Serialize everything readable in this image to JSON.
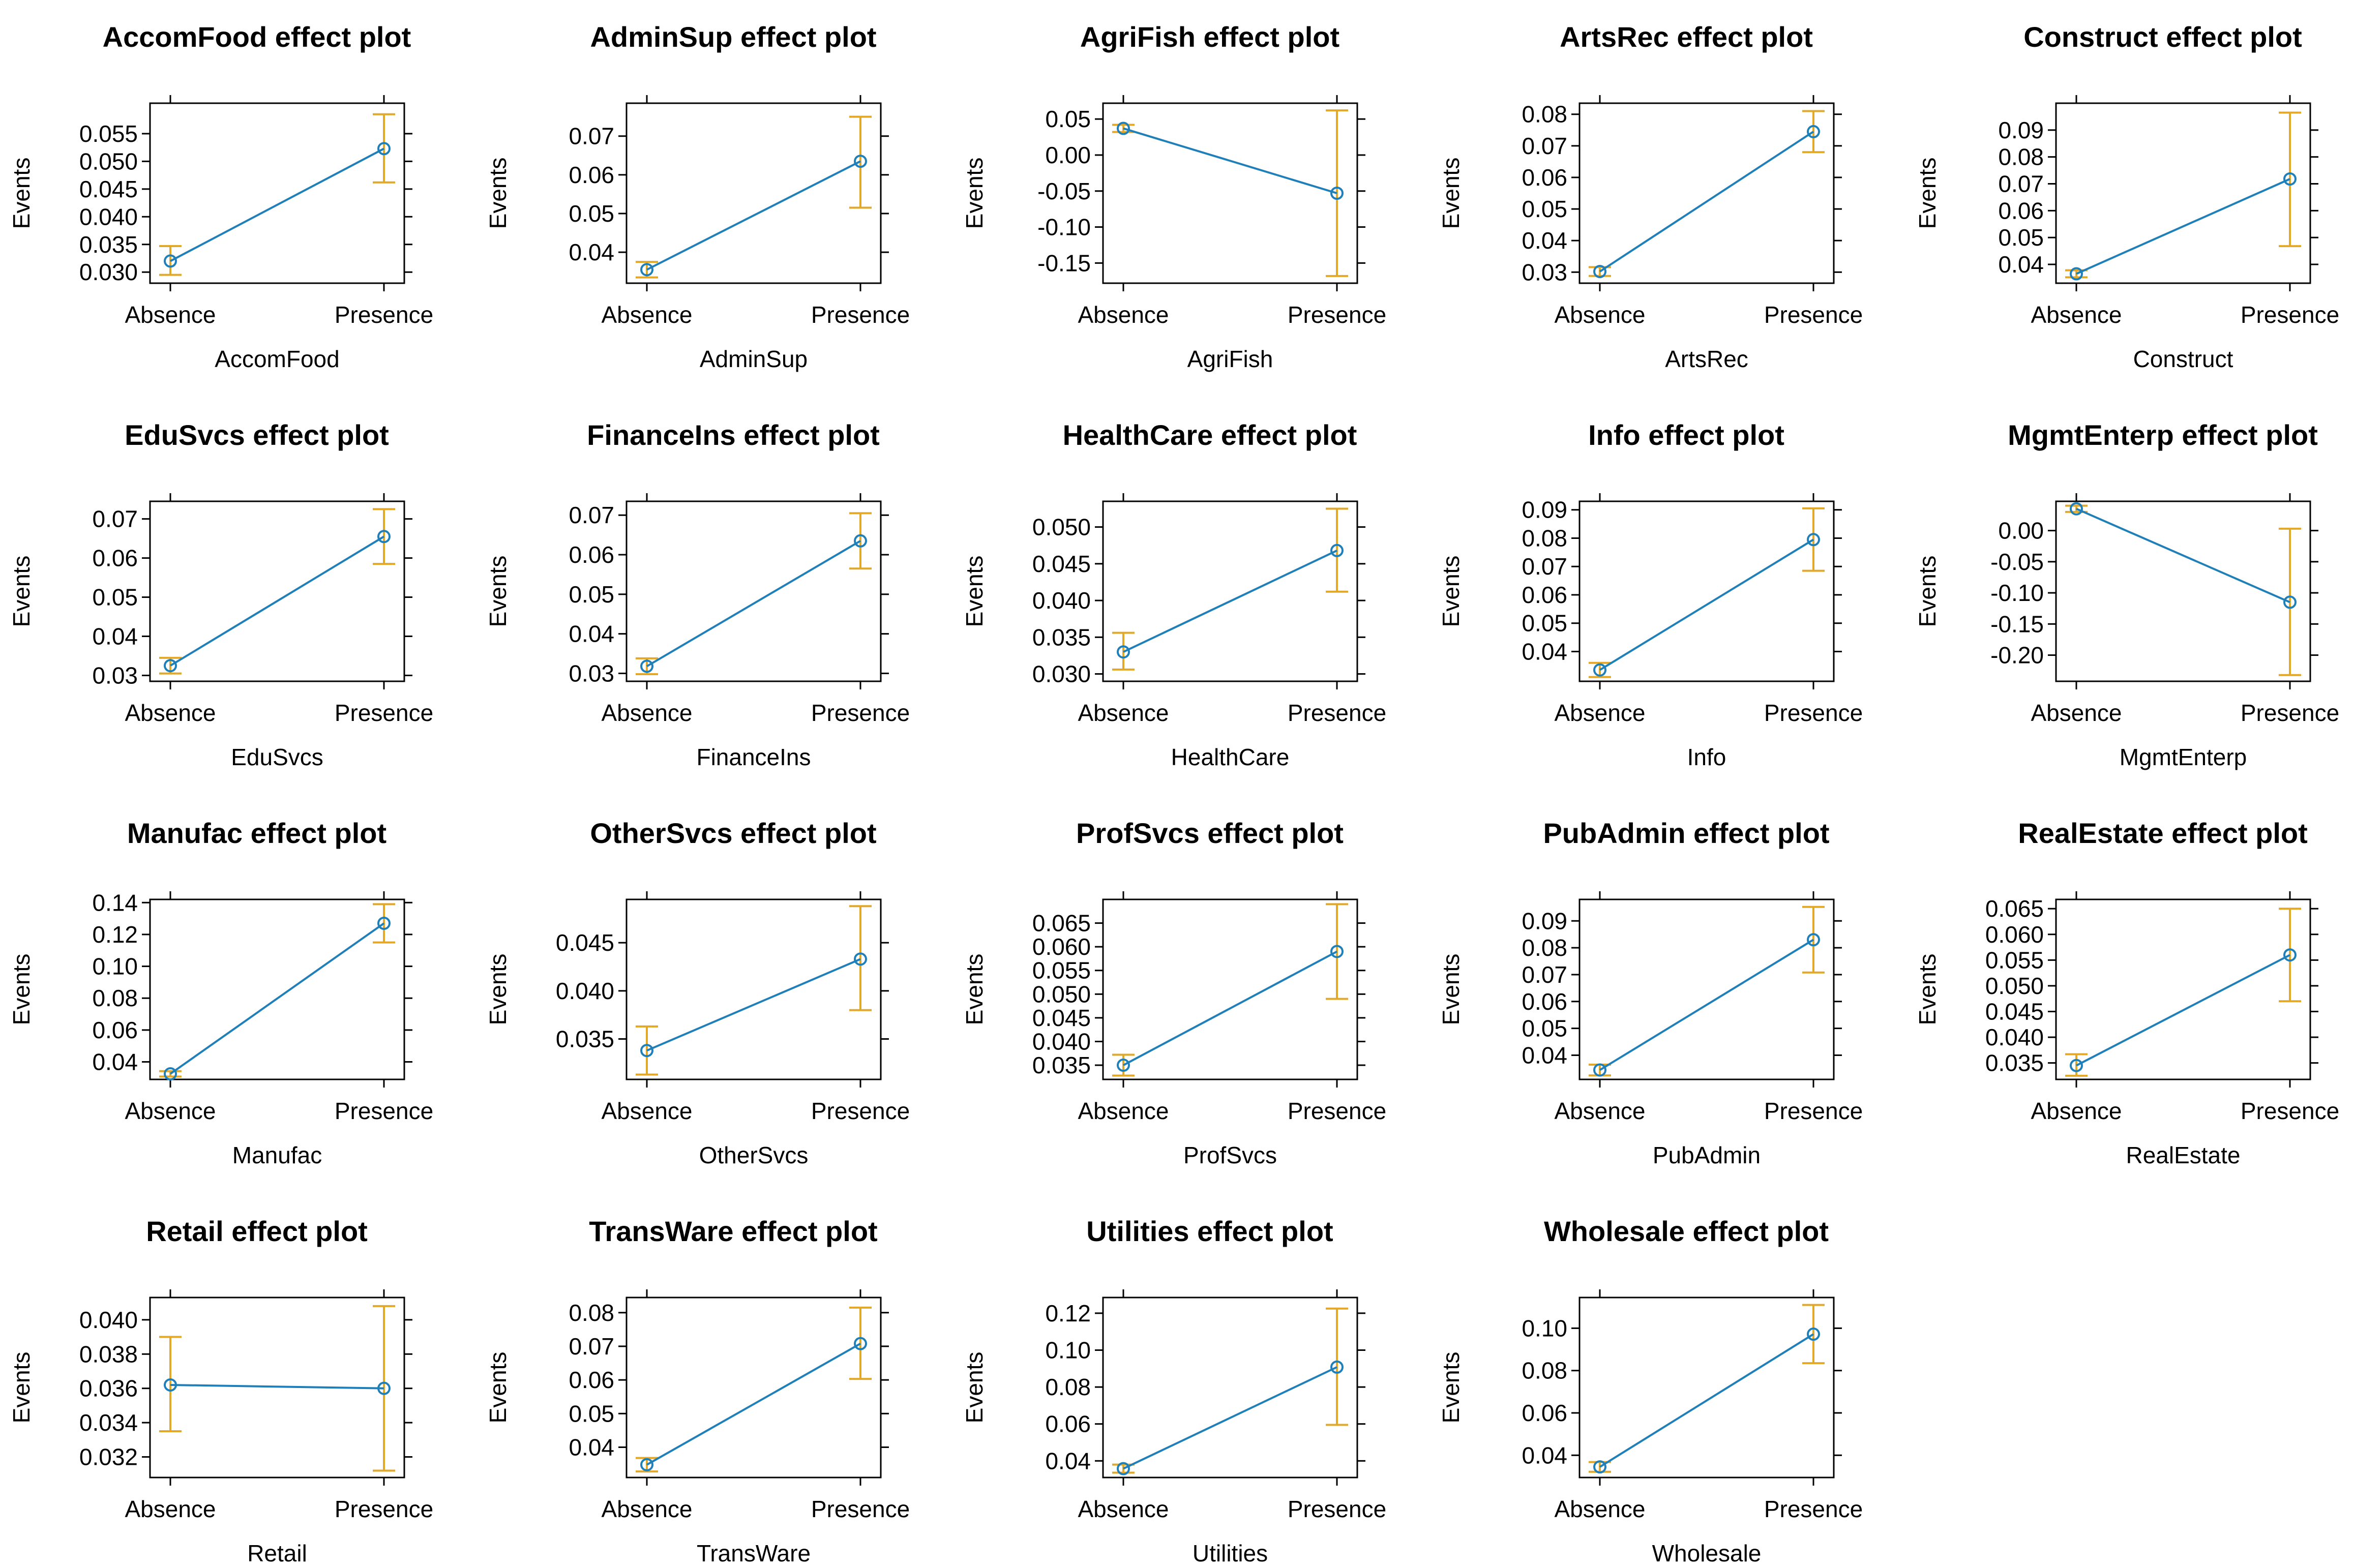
{
  "styles": {
    "line_color": "#1f7fb8",
    "ci_color": "#e2a829",
    "frame_color": "#000000"
  },
  "chart_data": [
    {
      "type": "line",
      "title": "AccomFood effect plot",
      "xlabel": "AccomFood",
      "ylabel": "Events",
      "categories": [
        "Absence",
        "Presence"
      ],
      "values": [
        0.032,
        0.0523
      ],
      "ci_lower": [
        0.0295,
        0.0462
      ],
      "ci_upper": [
        0.0347,
        0.0585
      ],
      "yticks": [
        0.03,
        0.035,
        0.04,
        0.045,
        0.05,
        0.055
      ],
      "ytick_labels": [
        "0.030",
        "0.035",
        "0.040",
        "0.045",
        "0.050",
        "0.055"
      ],
      "ylim": [
        0.028,
        0.0605
      ]
    },
    {
      "type": "line",
      "title": "AdminSup effect plot",
      "xlabel": "AdminSup",
      "ylabel": "Events",
      "categories": [
        "Absence",
        "Presence"
      ],
      "values": [
        0.0355,
        0.0635
      ],
      "ci_lower": [
        0.0335,
        0.0515
      ],
      "ci_upper": [
        0.0375,
        0.075
      ],
      "yticks": [
        0.04,
        0.05,
        0.06,
        0.07
      ],
      "ytick_labels": [
        "0.04",
        "0.05",
        "0.06",
        "0.07"
      ],
      "ylim": [
        0.032,
        0.0785
      ]
    },
    {
      "type": "line",
      "title": "AgriFish effect plot",
      "xlabel": "AgriFish",
      "ylabel": "Events",
      "categories": [
        "Absence",
        "Presence"
      ],
      "values": [
        0.037,
        -0.053
      ],
      "ci_lower": [
        0.032,
        -0.168
      ],
      "ci_upper": [
        0.042,
        0.062
      ],
      "yticks": [
        -0.15,
        -0.1,
        -0.05,
        0.0,
        0.05
      ],
      "ytick_labels": [
        "-0.15",
        "-0.10",
        "-0.05",
        "0.00",
        "0.05"
      ],
      "ylim": [
        -0.178,
        0.072
      ]
    },
    {
      "type": "line",
      "title": "ArtsRec effect plot",
      "xlabel": "ArtsRec",
      "ylabel": "Events",
      "categories": [
        "Absence",
        "Presence"
      ],
      "values": [
        0.0302,
        0.0745
      ],
      "ci_lower": [
        0.0288,
        0.068
      ],
      "ci_upper": [
        0.0316,
        0.081
      ],
      "yticks": [
        0.03,
        0.04,
        0.05,
        0.06,
        0.07,
        0.08
      ],
      "ytick_labels": [
        "0.03",
        "0.04",
        "0.05",
        "0.06",
        "0.07",
        "0.08"
      ],
      "ylim": [
        0.0265,
        0.0835
      ]
    },
    {
      "type": "line",
      "title": "Construct effect plot",
      "xlabel": "Construct",
      "ylabel": "Events",
      "categories": [
        "Absence",
        "Presence"
      ],
      "values": [
        0.0365,
        0.0718
      ],
      "ci_lower": [
        0.0352,
        0.0468
      ],
      "ci_upper": [
        0.0378,
        0.0965
      ],
      "yticks": [
        0.04,
        0.05,
        0.06,
        0.07,
        0.08,
        0.09
      ],
      "ytick_labels": [
        "0.04",
        "0.05",
        "0.06",
        "0.07",
        "0.08",
        "0.09"
      ],
      "ylim": [
        0.033,
        0.1
      ]
    },
    {
      "type": "line",
      "title": "EduSvcs effect plot",
      "xlabel": "EduSvcs",
      "ylabel": "Events",
      "categories": [
        "Absence",
        "Presence"
      ],
      "values": [
        0.0325,
        0.0655
      ],
      "ci_lower": [
        0.0305,
        0.0585
      ],
      "ci_upper": [
        0.0345,
        0.0725
      ],
      "yticks": [
        0.03,
        0.04,
        0.05,
        0.06,
        0.07
      ],
      "ytick_labels": [
        "0.03",
        "0.04",
        "0.05",
        "0.06",
        "0.07"
      ],
      "ylim": [
        0.0285,
        0.0745
      ]
    },
    {
      "type": "line",
      "title": "FinanceIns effect plot",
      "xlabel": "FinanceIns",
      "ylabel": "Events",
      "categories": [
        "Absence",
        "Presence"
      ],
      "values": [
        0.0318,
        0.0635
      ],
      "ci_lower": [
        0.0298,
        0.0565
      ],
      "ci_upper": [
        0.0338,
        0.0705
      ],
      "yticks": [
        0.03,
        0.04,
        0.05,
        0.06,
        0.07
      ],
      "ytick_labels": [
        "0.03",
        "0.04",
        "0.05",
        "0.06",
        "0.07"
      ],
      "ylim": [
        0.028,
        0.0735
      ]
    },
    {
      "type": "line",
      "title": "HealthCare effect plot",
      "xlabel": "HealthCare",
      "ylabel": "Events",
      "categories": [
        "Absence",
        "Presence"
      ],
      "values": [
        0.033,
        0.0468
      ],
      "ci_lower": [
        0.0306,
        0.0412
      ],
      "ci_upper": [
        0.0356,
        0.0525
      ],
      "yticks": [
        0.03,
        0.035,
        0.04,
        0.045,
        0.05
      ],
      "ytick_labels": [
        "0.030",
        "0.035",
        "0.040",
        "0.045",
        "0.050"
      ],
      "ylim": [
        0.029,
        0.0535
      ]
    },
    {
      "type": "line",
      "title": "Info effect plot",
      "xlabel": "Info",
      "ylabel": "Events",
      "categories": [
        "Absence",
        "Presence"
      ],
      "values": [
        0.0335,
        0.0795
      ],
      "ci_lower": [
        0.031,
        0.0685
      ],
      "ci_upper": [
        0.036,
        0.0905
      ],
      "yticks": [
        0.04,
        0.05,
        0.06,
        0.07,
        0.08,
        0.09
      ],
      "ytick_labels": [
        "0.04",
        "0.05",
        "0.06",
        "0.07",
        "0.08",
        "0.09"
      ],
      "ylim": [
        0.0295,
        0.093
      ]
    },
    {
      "type": "line",
      "title": "MgmtEnterp effect plot",
      "xlabel": "MgmtEnterp",
      "ylabel": "Events",
      "categories": [
        "Absence",
        "Presence"
      ],
      "values": [
        0.035,
        -0.115
      ],
      "ci_lower": [
        0.03,
        -0.232
      ],
      "ci_upper": [
        0.04,
        0.003
      ],
      "yticks": [
        -0.2,
        -0.15,
        -0.1,
        -0.05,
        0.0
      ],
      "ytick_labels": [
        "-0.20",
        "-0.15",
        "-0.10",
        "-0.05",
        "0.00"
      ],
      "ylim": [
        -0.242,
        0.047
      ]
    },
    {
      "type": "line",
      "title": "Manufac effect plot",
      "xlabel": "Manufac",
      "ylabel": "Events",
      "categories": [
        "Absence",
        "Presence"
      ],
      "values": [
        0.0325,
        0.127
      ],
      "ci_lower": [
        0.0308,
        0.115
      ],
      "ci_upper": [
        0.0342,
        0.139
      ],
      "yticks": [
        0.04,
        0.06,
        0.08,
        0.1,
        0.12,
        0.14
      ],
      "ytick_labels": [
        "0.04",
        "0.06",
        "0.08",
        "0.10",
        "0.12",
        "0.14"
      ],
      "ylim": [
        0.029,
        0.142
      ]
    },
    {
      "type": "line",
      "title": "OtherSvcs effect plot",
      "xlabel": "OtherSvcs",
      "ylabel": "Events",
      "categories": [
        "Absence",
        "Presence"
      ],
      "values": [
        0.0338,
        0.0433
      ],
      "ci_lower": [
        0.0313,
        0.038
      ],
      "ci_upper": [
        0.0363,
        0.0488
      ],
      "yticks": [
        0.035,
        0.04,
        0.045
      ],
      "ytick_labels": [
        "0.035",
        "0.040",
        "0.045"
      ],
      "ylim": [
        0.0308,
        0.0495
      ]
    },
    {
      "type": "line",
      "title": "ProfSvcs effect plot",
      "xlabel": "ProfSvcs",
      "ylabel": "Events",
      "categories": [
        "Absence",
        "Presence"
      ],
      "values": [
        0.035,
        0.059
      ],
      "ci_lower": [
        0.0328,
        0.049
      ],
      "ci_upper": [
        0.0372,
        0.069
      ],
      "yticks": [
        0.035,
        0.04,
        0.045,
        0.05,
        0.055,
        0.06,
        0.065
      ],
      "ytick_labels": [
        "0.035",
        "0.040",
        "0.045",
        "0.050",
        "0.055",
        "0.060",
        "0.065"
      ],
      "ylim": [
        0.032,
        0.07
      ]
    },
    {
      "type": "line",
      "title": "PubAdmin effect plot",
      "xlabel": "PubAdmin",
      "ylabel": "Events",
      "categories": [
        "Absence",
        "Presence"
      ],
      "values": [
        0.0345,
        0.083
      ],
      "ci_lower": [
        0.0325,
        0.0708
      ],
      "ci_upper": [
        0.0365,
        0.0952
      ],
      "yticks": [
        0.04,
        0.05,
        0.06,
        0.07,
        0.08,
        0.09
      ],
      "ytick_labels": [
        "0.04",
        "0.05",
        "0.06",
        "0.07",
        "0.08",
        "0.09"
      ],
      "ylim": [
        0.031,
        0.098
      ]
    },
    {
      "type": "line",
      "title": "RealEstate effect plot",
      "xlabel": "RealEstate",
      "ylabel": "Events",
      "categories": [
        "Absence",
        "Presence"
      ],
      "values": [
        0.0345,
        0.056
      ],
      "ci_lower": [
        0.0325,
        0.047
      ],
      "ci_upper": [
        0.0367,
        0.065
      ],
      "yticks": [
        0.035,
        0.04,
        0.045,
        0.05,
        0.055,
        0.06,
        0.065
      ],
      "ytick_labels": [
        "0.035",
        "0.040",
        "0.045",
        "0.050",
        "0.055",
        "0.060",
        "0.065"
      ],
      "ylim": [
        0.0318,
        0.0668
      ]
    },
    {
      "type": "line",
      "title": "Retail effect plot",
      "xlabel": "Retail",
      "ylabel": "Events",
      "categories": [
        "Absence",
        "Presence"
      ],
      "values": [
        0.0362,
        0.036
      ],
      "ci_lower": [
        0.0335,
        0.0312
      ],
      "ci_upper": [
        0.039,
        0.0408
      ],
      "yticks": [
        0.032,
        0.034,
        0.036,
        0.038,
        0.04
      ],
      "ytick_labels": [
        "0.032",
        "0.034",
        "0.036",
        "0.038",
        "0.040"
      ],
      "ylim": [
        0.0308,
        0.0413
      ]
    },
    {
      "type": "line",
      "title": "TransWare effect plot",
      "xlabel": "TransWare",
      "ylabel": "Events",
      "categories": [
        "Absence",
        "Presence"
      ],
      "values": [
        0.0348,
        0.0708
      ],
      "ci_lower": [
        0.0328,
        0.0603
      ],
      "ci_upper": [
        0.0368,
        0.0815
      ],
      "yticks": [
        0.04,
        0.05,
        0.06,
        0.07,
        0.08
      ],
      "ytick_labels": [
        "0.04",
        "0.05",
        "0.06",
        "0.07",
        "0.08"
      ],
      "ylim": [
        0.031,
        0.0845
      ]
    },
    {
      "type": "line",
      "title": "Utilities effect plot",
      "xlabel": "Utilities",
      "ylabel": "Events",
      "categories": [
        "Absence",
        "Presence"
      ],
      "values": [
        0.0358,
        0.0908
      ],
      "ci_lower": [
        0.0336,
        0.0595
      ],
      "ci_upper": [
        0.038,
        0.1225
      ],
      "yticks": [
        0.04,
        0.06,
        0.08,
        0.1,
        0.12
      ],
      "ytick_labels": [
        "0.04",
        "0.06",
        "0.08",
        "0.10",
        "0.12"
      ],
      "ylim": [
        0.031,
        0.1285
      ]
    },
    {
      "type": "line",
      "title": "Wholesale effect plot",
      "xlabel": "Wholesale",
      "ylabel": "Events",
      "categories": [
        "Absence",
        "Presence"
      ],
      "values": [
        0.0345,
        0.0972
      ],
      "ci_lower": [
        0.0322,
        0.0835
      ],
      "ci_upper": [
        0.0368,
        0.111
      ],
      "yticks": [
        0.04,
        0.06,
        0.08,
        0.1
      ],
      "ytick_labels": [
        "0.04",
        "0.06",
        "0.08",
        "0.10"
      ],
      "ylim": [
        0.0295,
        0.1145
      ]
    }
  ]
}
